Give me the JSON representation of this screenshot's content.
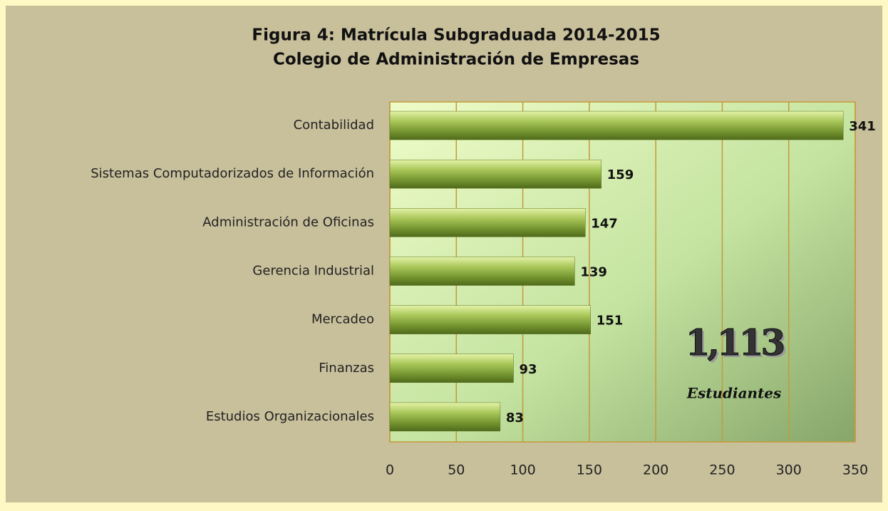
{
  "chart_data": {
    "type": "barh",
    "title": "Figura 4: Matrícula Subgraduada 2014-2015",
    "subtitle": "Colegio de Administración de Empresas",
    "categories": [
      "Contabilidad",
      "Sistemas Computadorizados de Información",
      "Administración de Oficinas",
      "Gerencia Industrial",
      "Mercadeo",
      "Finanzas",
      "Estudios Organizacionales"
    ],
    "values": [
      341,
      159,
      147,
      139,
      151,
      93,
      83
    ],
    "color": "#8aab3c",
    "xlim": [
      0,
      350
    ],
    "xticks": [
      0,
      50,
      100,
      150,
      200,
      250,
      300,
      350
    ],
    "grid": true,
    "annotations": [
      "1,113",
      "Estudiantes"
    ]
  }
}
